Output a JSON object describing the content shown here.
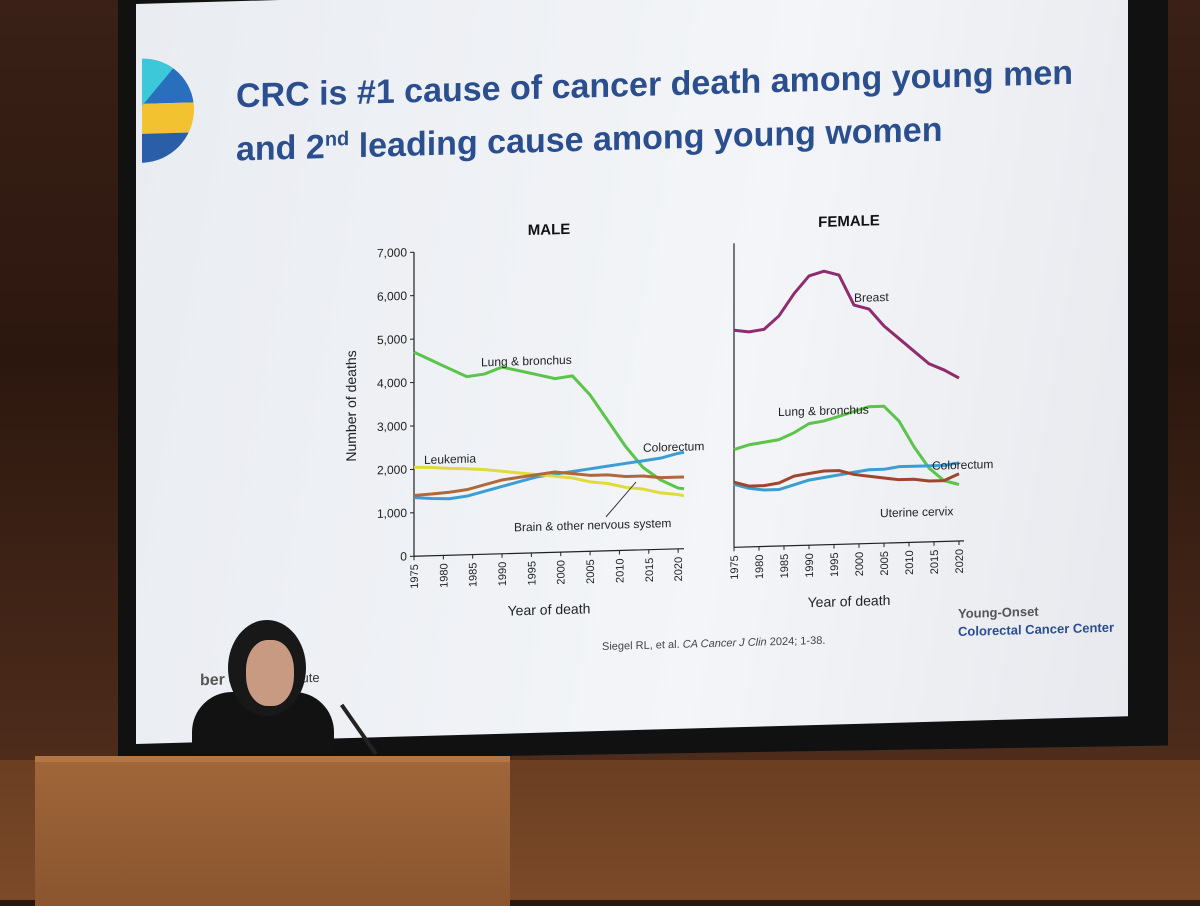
{
  "slide": {
    "title_part1": "CRC is #1 cause of cancer death among young men and 2",
    "title_sup": "nd",
    "title_part2": " leading cause among young women",
    "footer_brand": "ber",
    "footer_brand_suffix": "Cancer Institute",
    "citation_prefix": "Siegel RL, et al. ",
    "citation_journal": "CA Cancer J Clin",
    "citation_suffix": " 2024; 1-38.",
    "center_line1": "Young-Onset",
    "center_line2": "Colorectal Cancer Center"
  },
  "colors": {
    "lung": "#5cc44a",
    "colorectum": "#3a9ed4",
    "leukemia": "#e0da3a",
    "brain": "#b0683a",
    "breast": "#8e2c6e",
    "cervix": "#a0462e",
    "title": "#2b4f8e"
  },
  "chart_data": [
    {
      "type": "line",
      "title": "MALE",
      "xlabel": "Year of death",
      "ylabel": "Number of deaths",
      "xlim": [
        1975,
        2021
      ],
      "ylim": [
        0,
        7000
      ],
      "xticks": [
        "1975",
        "1980",
        "1985",
        "1990",
        "1995",
        "2000",
        "2005",
        "2010",
        "2015",
        "2020"
      ],
      "yticks": [
        "0",
        "1,000",
        "2,000",
        "3,000",
        "4,000",
        "5,000",
        "6,000",
        "7,000"
      ],
      "x": [
        1975,
        1978,
        1981,
        1984,
        1987,
        1990,
        1993,
        1996,
        1999,
        2002,
        2005,
        2008,
        2011,
        2014,
        2017,
        2020,
        2021
      ],
      "series": [
        {
          "name": "Lung & bronchus",
          "values": [
            4700,
            4500,
            4300,
            4100,
            4150,
            4300,
            4200,
            4100,
            4000,
            4050,
            3600,
            3000,
            2400,
            1900,
            1600,
            1400,
            1380
          ]
        },
        {
          "name": "Colorectum",
          "values": [
            1350,
            1320,
            1300,
            1350,
            1450,
            1550,
            1650,
            1750,
            1800,
            1850,
            1900,
            1950,
            2000,
            2050,
            2100,
            2200,
            2220
          ]
        },
        {
          "name": "Leukemia",
          "values": [
            2050,
            2030,
            2000,
            1980,
            1950,
            1900,
            1850,
            1800,
            1750,
            1700,
            1600,
            1550,
            1450,
            1400,
            1300,
            1250,
            1220
          ]
        },
        {
          "name": "Brain & other nervous system",
          "values": [
            1400,
            1420,
            1450,
            1500,
            1600,
            1700,
            1750,
            1800,
            1850,
            1800,
            1750,
            1750,
            1700,
            1700,
            1650,
            1650,
            1650
          ]
        }
      ]
    },
    {
      "type": "line",
      "title": "FEMALE",
      "xlabel": "Year of death",
      "ylabel": "",
      "xlim": [
        1975,
        2021
      ],
      "ylim": [
        0,
        7000
      ],
      "xticks": [
        "1975",
        "1980",
        "1985",
        "1990",
        "1995",
        "2000",
        "2005",
        "2010",
        "2015",
        "2020"
      ],
      "x": [
        1975,
        1978,
        1981,
        1984,
        1987,
        1990,
        1993,
        1996,
        1999,
        2002,
        2005,
        2008,
        2011,
        2014,
        2017,
        2020
      ],
      "series": [
        {
          "name": "Breast",
          "values": [
            5000,
            4950,
            5000,
            5300,
            5800,
            6200,
            6300,
            6200,
            5500,
            5400,
            5000,
            4700,
            4400,
            4100,
            3950,
            3750
          ]
        },
        {
          "name": "Lung & bronchus",
          "values": [
            2250,
            2350,
            2400,
            2450,
            2600,
            2800,
            2850,
            2950,
            3050,
            3150,
            3150,
            2800,
            2200,
            1700,
            1400,
            1300
          ]
        },
        {
          "name": "Colorectum",
          "values": [
            1450,
            1350,
            1300,
            1300,
            1400,
            1500,
            1550,
            1600,
            1650,
            1700,
            1700,
            1750,
            1750,
            1750,
            1750,
            1800
          ]
        },
        {
          "name": "Uterine cervix",
          "values": [
            1500,
            1400,
            1400,
            1450,
            1600,
            1650,
            1700,
            1700,
            1600,
            1550,
            1500,
            1450,
            1450,
            1400,
            1400,
            1550
          ]
        }
      ]
    }
  ]
}
